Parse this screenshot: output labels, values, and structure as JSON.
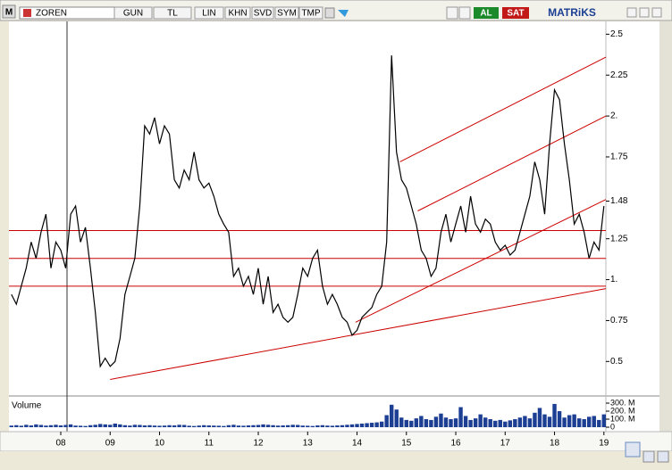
{
  "toolbar": {
    "logo": "M",
    "symbol": "ZOREN",
    "buttons": [
      "GUN",
      "TL",
      "LIN",
      "KHN",
      "SVD",
      "SYM",
      "TMP"
    ],
    "buy": "AL",
    "sell": "SAT",
    "brand": "MATRiKS"
  },
  "chart_data": {
    "type": "line",
    "x": [
      7,
      7.1,
      7.2,
      7.3,
      7.4,
      7.5,
      7.6,
      7.7,
      7.8,
      7.9,
      8,
      8.1,
      8.2,
      8.3,
      8.4,
      8.5,
      8.6,
      8.7,
      8.8,
      8.9,
      9,
      9.1,
      9.2,
      9.3,
      9.4,
      9.5,
      9.6,
      9.7,
      9.8,
      9.9,
      10,
      10.1,
      10.2,
      10.3,
      10.4,
      10.5,
      10.6,
      10.7,
      10.8,
      10.9,
      11,
      11.1,
      11.2,
      11.3,
      11.4,
      11.5,
      11.6,
      11.7,
      11.8,
      11.9,
      12,
      12.1,
      12.2,
      12.3,
      12.4,
      12.5,
      12.6,
      12.7,
      12.8,
      12.9,
      13,
      13.1,
      13.2,
      13.3,
      13.4,
      13.5,
      13.6,
      13.7,
      13.8,
      13.9,
      14,
      14.1,
      14.2,
      14.3,
      14.4,
      14.5,
      14.6,
      14.7,
      14.8,
      14.9,
      15,
      15.1,
      15.2,
      15.3,
      15.4,
      15.5,
      15.6,
      15.7,
      15.8,
      15.9,
      16,
      16.1,
      16.2,
      16.3,
      16.4,
      16.5,
      16.6,
      16.7,
      16.8,
      16.9,
      17,
      17.1,
      17.2,
      17.3,
      17.4,
      17.5,
      17.6,
      17.7,
      17.8,
      17.9,
      18,
      18.1,
      18.2,
      18.3,
      18.4,
      18.5,
      18.6,
      18.7,
      18.8,
      18.9,
      19
    ],
    "series": [
      {
        "color": "#000000",
        "values": [
          0.91,
          0.85,
          0.96,
          1.07,
          1.23,
          1.13,
          1.29,
          1.4,
          1.07,
          1.23,
          1.18,
          1.07,
          1.4,
          1.45,
          1.23,
          1.32,
          1.07,
          0.8,
          0.47,
          0.52,
          0.47,
          0.5,
          0.64,
          0.91,
          1.02,
          1.13,
          1.45,
          1.94,
          1.89,
          1.99,
          1.83,
          1.94,
          1.89,
          1.61,
          1.56,
          1.67,
          1.61,
          1.78,
          1.61,
          1.56,
          1.59,
          1.51,
          1.4,
          1.34,
          1.29,
          1.02,
          1.07,
          0.96,
          1.02,
          0.91,
          1.07,
          0.85,
          1.02,
          0.8,
          0.85,
          0.77,
          0.74,
          0.77,
          0.91,
          1.07,
          1.02,
          1.13,
          1.18,
          0.96,
          0.85,
          0.91,
          0.85,
          0.77,
          0.74,
          0.66,
          0.69,
          0.77,
          0.8,
          0.83,
          0.91,
          0.96,
          1.23,
          2.37,
          1.78,
          1.61,
          1.56,
          1.45,
          1.34,
          1.18,
          1.13,
          1.02,
          1.07,
          1.29,
          1.4,
          1.23,
          1.34,
          1.45,
          1.29,
          1.51,
          1.34,
          1.29,
          1.37,
          1.34,
          1.23,
          1.18,
          1.21,
          1.15,
          1.18,
          1.29,
          1.4,
          1.51,
          1.72,
          1.61,
          1.4,
          1.83,
          2.16,
          2.1,
          1.83,
          1.61,
          1.34,
          1.4,
          1.29,
          1.13,
          1.23,
          1.18,
          1.45
        ]
      }
    ],
    "xlim": [
      6.95,
      19.04
    ],
    "xticks": [
      {
        "value": 8,
        "label": "08"
      },
      {
        "value": 9,
        "label": "09"
      },
      10,
      11,
      12,
      13,
      14,
      15,
      16,
      17,
      18,
      19
    ],
    "ylim": [
      0.3,
      2.6
    ],
    "yticks": [
      2.5,
      2.25,
      {
        "value": 2,
        "label": "2."
      },
      1.75,
      1.48,
      1.25,
      {
        "value": 1,
        "label": "1."
      },
      0.75,
      0.5
    ],
    "line_color": "#cc0000",
    "hlines": [
      1.3,
      1.13,
      0.96
    ],
    "trend_lines": [
      {
        "x1": 9.0,
        "y1": 0.39,
        "x2": 19.04,
        "y2": 0.945
      },
      {
        "x1": 13.97,
        "y1": 0.74,
        "x2": 19.04,
        "y2": 1.49
      },
      {
        "x1": 14.87,
        "y1": 1.72,
        "x2": 19.04,
        "y2": 2.36
      },
      {
        "x1": 15.23,
        "y1": 1.42,
        "x2": 19.04,
        "y2": 2.0
      }
    ],
    "volume": {
      "label": "Volume",
      "color": "#1c3f94",
      "ylim": [
        0,
        367
      ],
      "yticks": [
        {
          "value": 300,
          "label": "300. M"
        },
        {
          "value": 200,
          "label": "200. M"
        },
        {
          "value": 100,
          "label": "100. M"
        },
        0
      ],
      "values": [
        20,
        25,
        18,
        30,
        22,
        35,
        28,
        20,
        25,
        30,
        22,
        28,
        35,
        20,
        18,
        15,
        25,
        30,
        40,
        35,
        30,
        45,
        35,
        25,
        20,
        30,
        28,
        22,
        25,
        20,
        18,
        20,
        25,
        22,
        30,
        28,
        18,
        15,
        20,
        25,
        22,
        20,
        18,
        15,
        25,
        30,
        20,
        18,
        22,
        25,
        28,
        35,
        30,
        25,
        20,
        22,
        25,
        30,
        28,
        20,
        18,
        15,
        22,
        25,
        20,
        18,
        22,
        25,
        30,
        35,
        40,
        45,
        50,
        55,
        60,
        70,
        150,
        280,
        220,
        120,
        90,
        80,
        110,
        140,
        100,
        90,
        130,
        170,
        120,
        100,
        110,
        250,
        140,
        90,
        110,
        160,
        120,
        100,
        80,
        90,
        70,
        85,
        100,
        120,
        140,
        110,
        180,
        240,
        160,
        130,
        290,
        200,
        120,
        150,
        160,
        110,
        100,
        130,
        140,
        90,
        160
      ]
    }
  }
}
